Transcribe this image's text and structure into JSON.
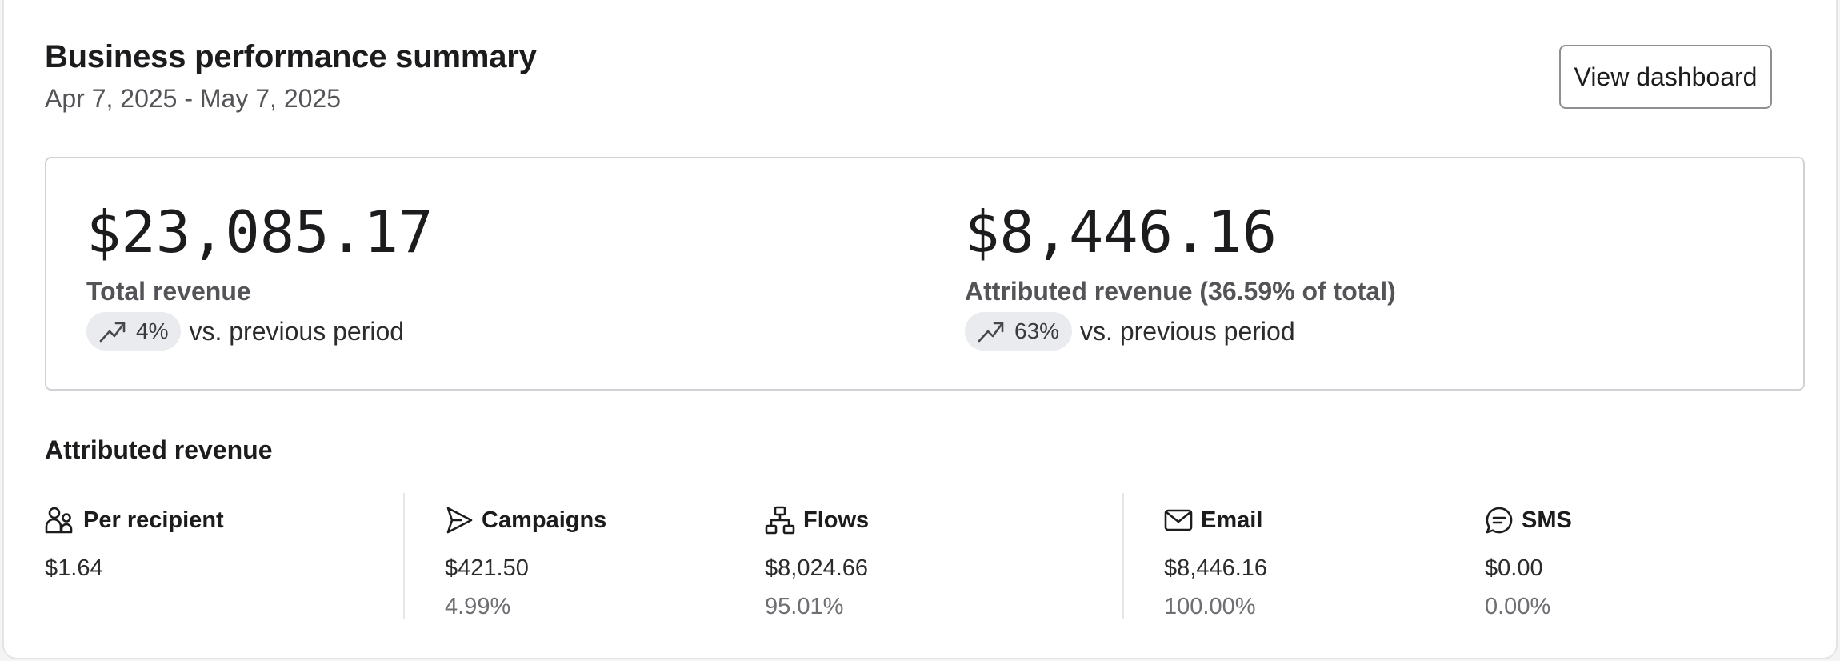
{
  "header": {
    "title": "Business performance summary",
    "date_range": "Apr 7, 2025 - May 7, 2025",
    "view_button_label": "View dashboard"
  },
  "summary": {
    "total": {
      "value": "$23,085.17",
      "label": "Total revenue",
      "trend_icon": "trending-up-icon",
      "trend_pct": "4%",
      "trend_text": "vs. previous period"
    },
    "attributed": {
      "value": "$8,446.16",
      "label": "Attributed revenue (36.59% of total)",
      "trend_icon": "trending-up-icon",
      "trend_pct": "63%",
      "trend_text": "vs. previous period"
    }
  },
  "attributed_section": {
    "title": "Attributed revenue",
    "stats": [
      {
        "icon": "users-icon",
        "label": "Per recipient",
        "value": "$1.64",
        "pct": ""
      },
      {
        "icon": "send-icon",
        "label": "Campaigns",
        "value": "$421.50",
        "pct": "4.99%"
      },
      {
        "icon": "flow-icon",
        "label": "Flows",
        "value": "$8,024.66",
        "pct": "95.01%"
      },
      {
        "icon": "mail-icon",
        "label": "Email",
        "value": "$8,446.16",
        "pct": "100.00%"
      },
      {
        "icon": "chat-icon",
        "label": "SMS",
        "value": "$0.00",
        "pct": "0.00%"
      }
    ]
  },
  "colors": {
    "pill_background": "#e9ebee",
    "border": "#d1d1d6",
    "muted_text": "#6e6e73"
  }
}
